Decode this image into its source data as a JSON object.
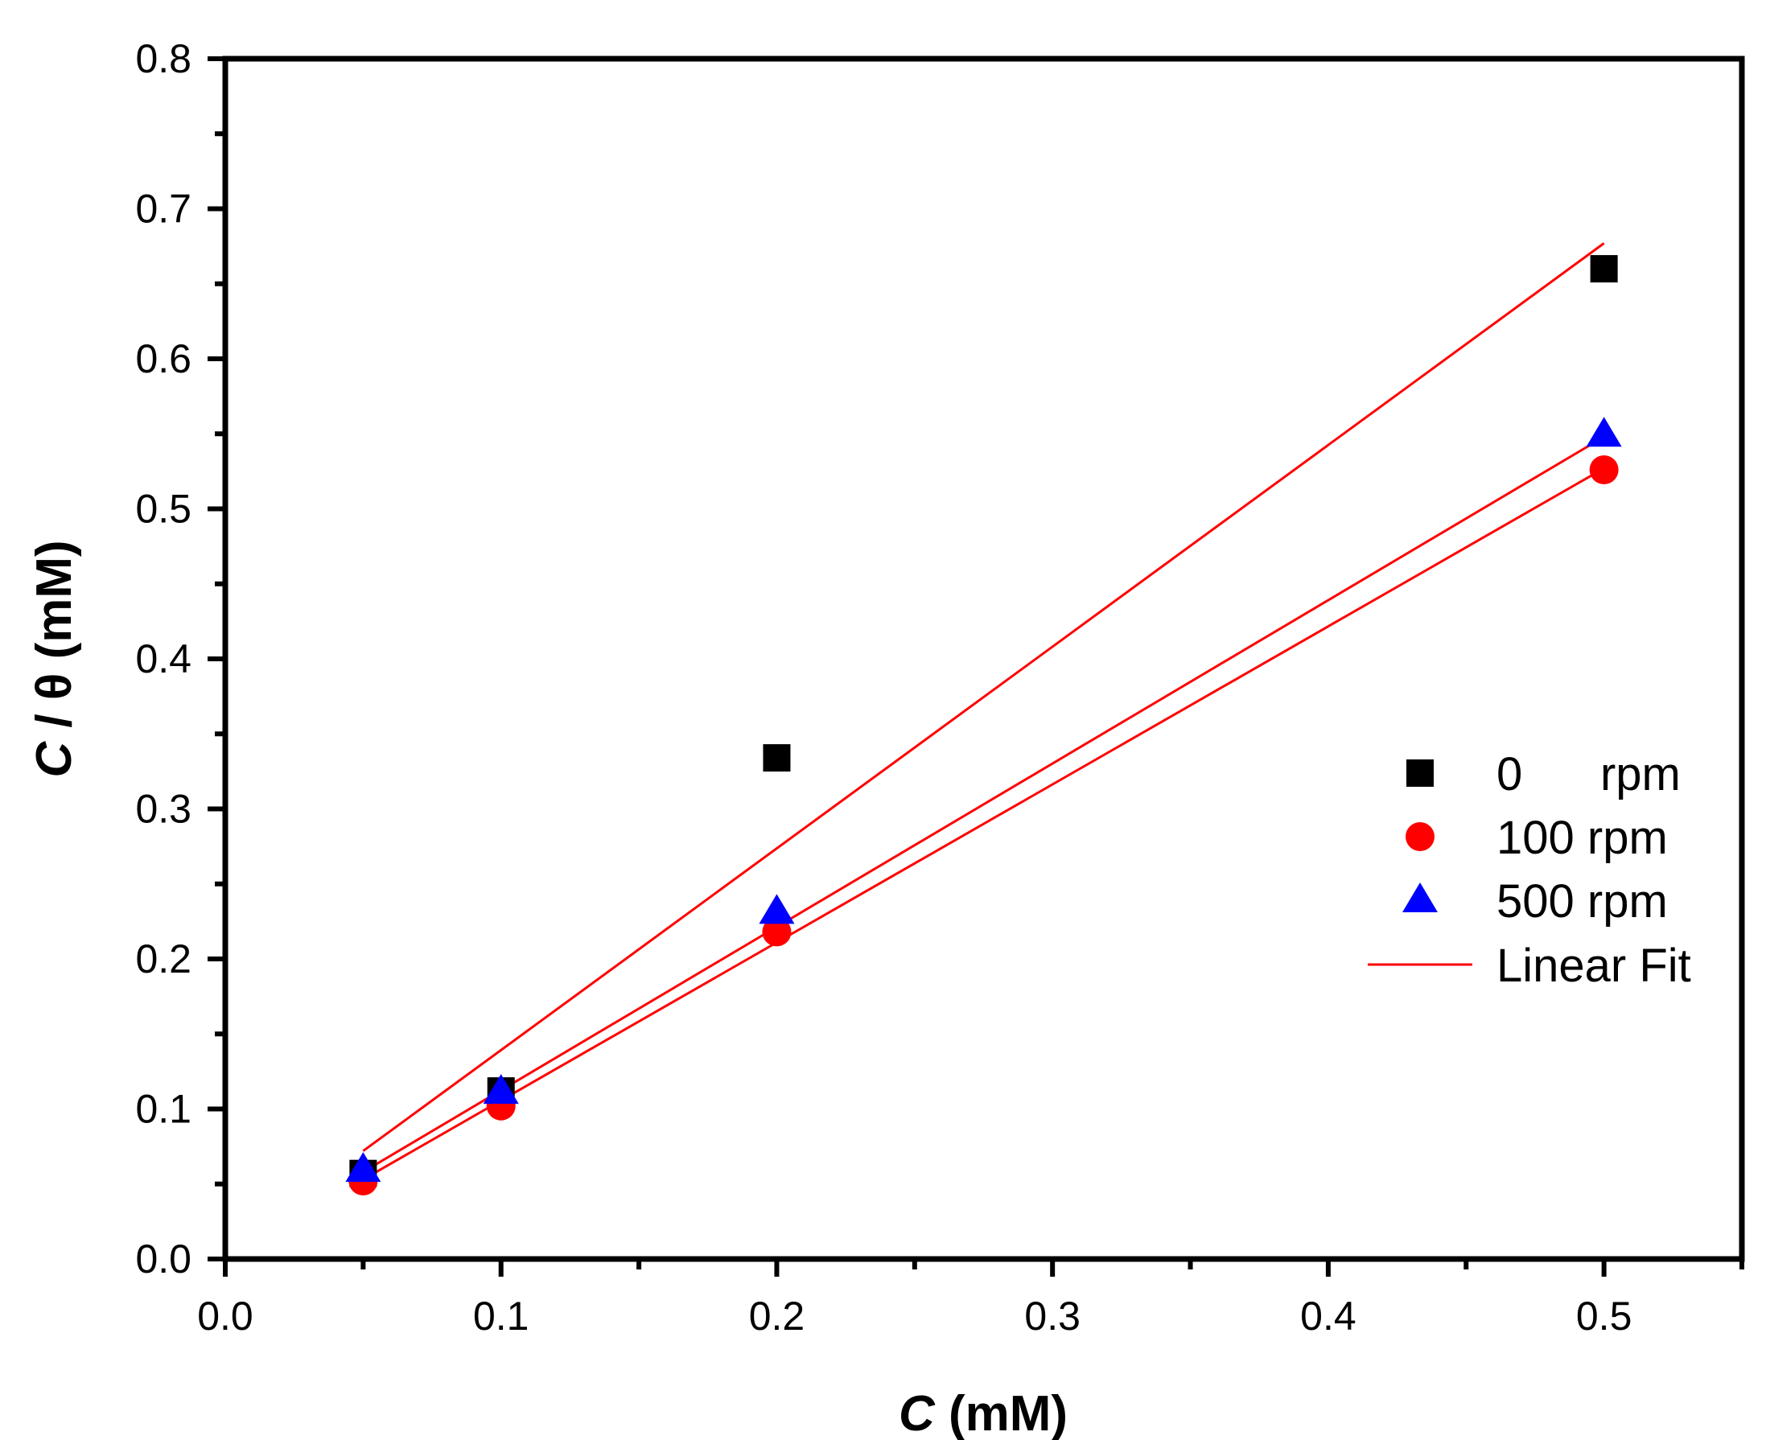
{
  "chart_data": {
    "type": "scatter",
    "title": "",
    "xlabel_italic": "C",
    "xlabel_rest": " (mM)",
    "ylabel_italic": "C",
    "ylabel_rest": " / θ (mM)",
    "xlim": [
      0.0,
      0.55
    ],
    "ylim": [
      0.0,
      0.8
    ],
    "xticks": [
      "0.0",
      "0.1",
      "0.2",
      "0.3",
      "0.4",
      "0.5"
    ],
    "yticks": [
      "0.0",
      "0.1",
      "0.2",
      "0.3",
      "0.4",
      "0.5",
      "0.6",
      "0.7",
      "0.8"
    ],
    "legend_position": "right",
    "series": [
      {
        "name": "0      rpm",
        "marker": "square",
        "color": "#000000",
        "x": [
          0.05,
          0.1,
          0.2,
          0.5
        ],
        "y": [
          0.057,
          0.112,
          0.334,
          0.66
        ],
        "fit": {
          "x": [
            0.05,
            0.5
          ],
          "y": [
            0.072,
            0.677
          ]
        }
      },
      {
        "name": "100 rpm",
        "marker": "circle",
        "color": "#ff0000",
        "x": [
          0.05,
          0.1,
          0.2,
          0.5
        ],
        "y": [
          0.052,
          0.102,
          0.218,
          0.526
        ],
        "fit": {
          "x": [
            0.05,
            0.5
          ],
          "y": [
            0.053,
            0.527
          ]
        }
      },
      {
        "name": "500 rpm",
        "marker": "triangle",
        "color": "#0000ff",
        "x": [
          0.05,
          0.1,
          0.2,
          0.5
        ],
        "y": [
          0.06,
          0.112,
          0.232,
          0.55
        ],
        "fit": {
          "x": [
            0.05,
            0.5
          ],
          "y": [
            0.058,
            0.548
          ]
        }
      }
    ],
    "fit_legend": {
      "name": "Linear Fit",
      "color": "#ff0000"
    }
  }
}
